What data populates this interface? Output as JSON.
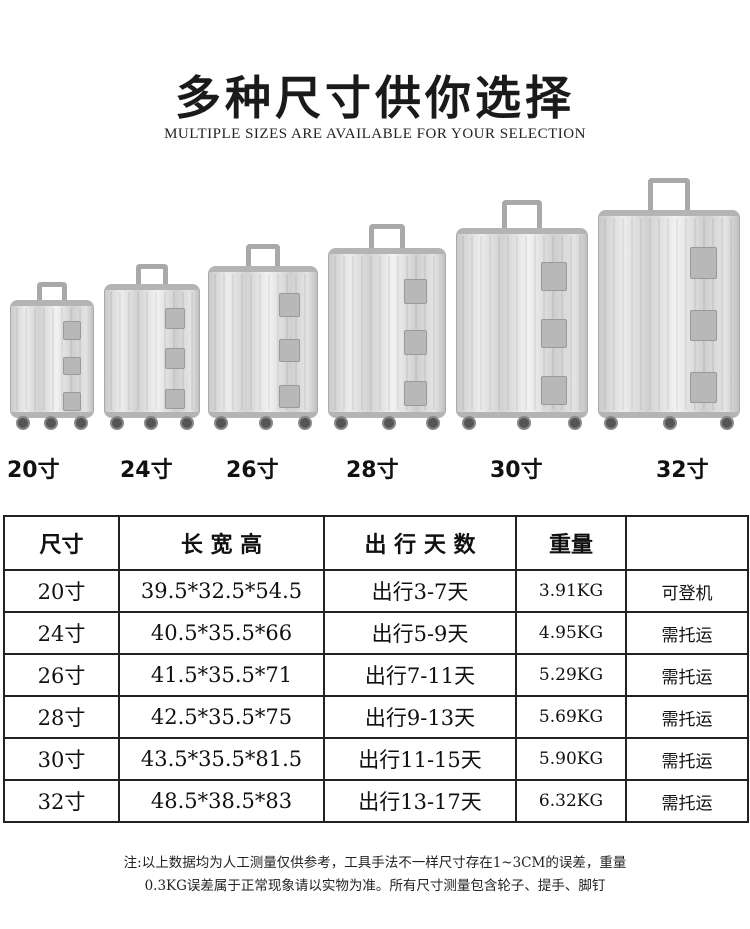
{
  "header": {
    "title": "多种尺寸供你选择",
    "subtitle": "MULTIPLE SIZES ARE AVAILABLE FOR YOUR SELECTION"
  },
  "sizes": [
    "20寸",
    "24寸",
    "26寸",
    "28寸",
    "30寸",
    "32寸"
  ],
  "table": {
    "headers": [
      "尺寸",
      "长 宽 高",
      "出 行 天 数",
      "重量",
      ""
    ],
    "rows": [
      [
        "20寸",
        "39.5*32.5*54.5",
        "出行3-7天",
        "3.91KG",
        "可登机"
      ],
      [
        "24寸",
        "40.5*35.5*66",
        "出行5-9天",
        "4.95KG",
        "需托运"
      ],
      [
        "26寸",
        "41.5*35.5*71",
        "出行7-11天",
        "5.29KG",
        "需托运"
      ],
      [
        "28寸",
        "42.5*35.5*75",
        "出行9-13天",
        "5.69KG",
        "需托运"
      ],
      [
        "30寸",
        "43.5*35.5*81.5",
        "出行11-15天",
        "5.90KG",
        "需托运"
      ],
      [
        "32寸",
        "48.5*38.5*83",
        "出行13-17天",
        "6.32KG",
        "需托运"
      ]
    ]
  },
  "note": {
    "line1": "注:以上数据均为人工测量仅供参考，工具手法不一样尺寸存在1~3CM的误差，重量",
    "line2": "0.3KG误差属于正常现象请以实物为准。所有尺寸测量包含轮子、提手、脚钉"
  },
  "colors": {
    "suitcase": "#d9d9d9",
    "text": "#111111",
    "border": "#222222"
  }
}
